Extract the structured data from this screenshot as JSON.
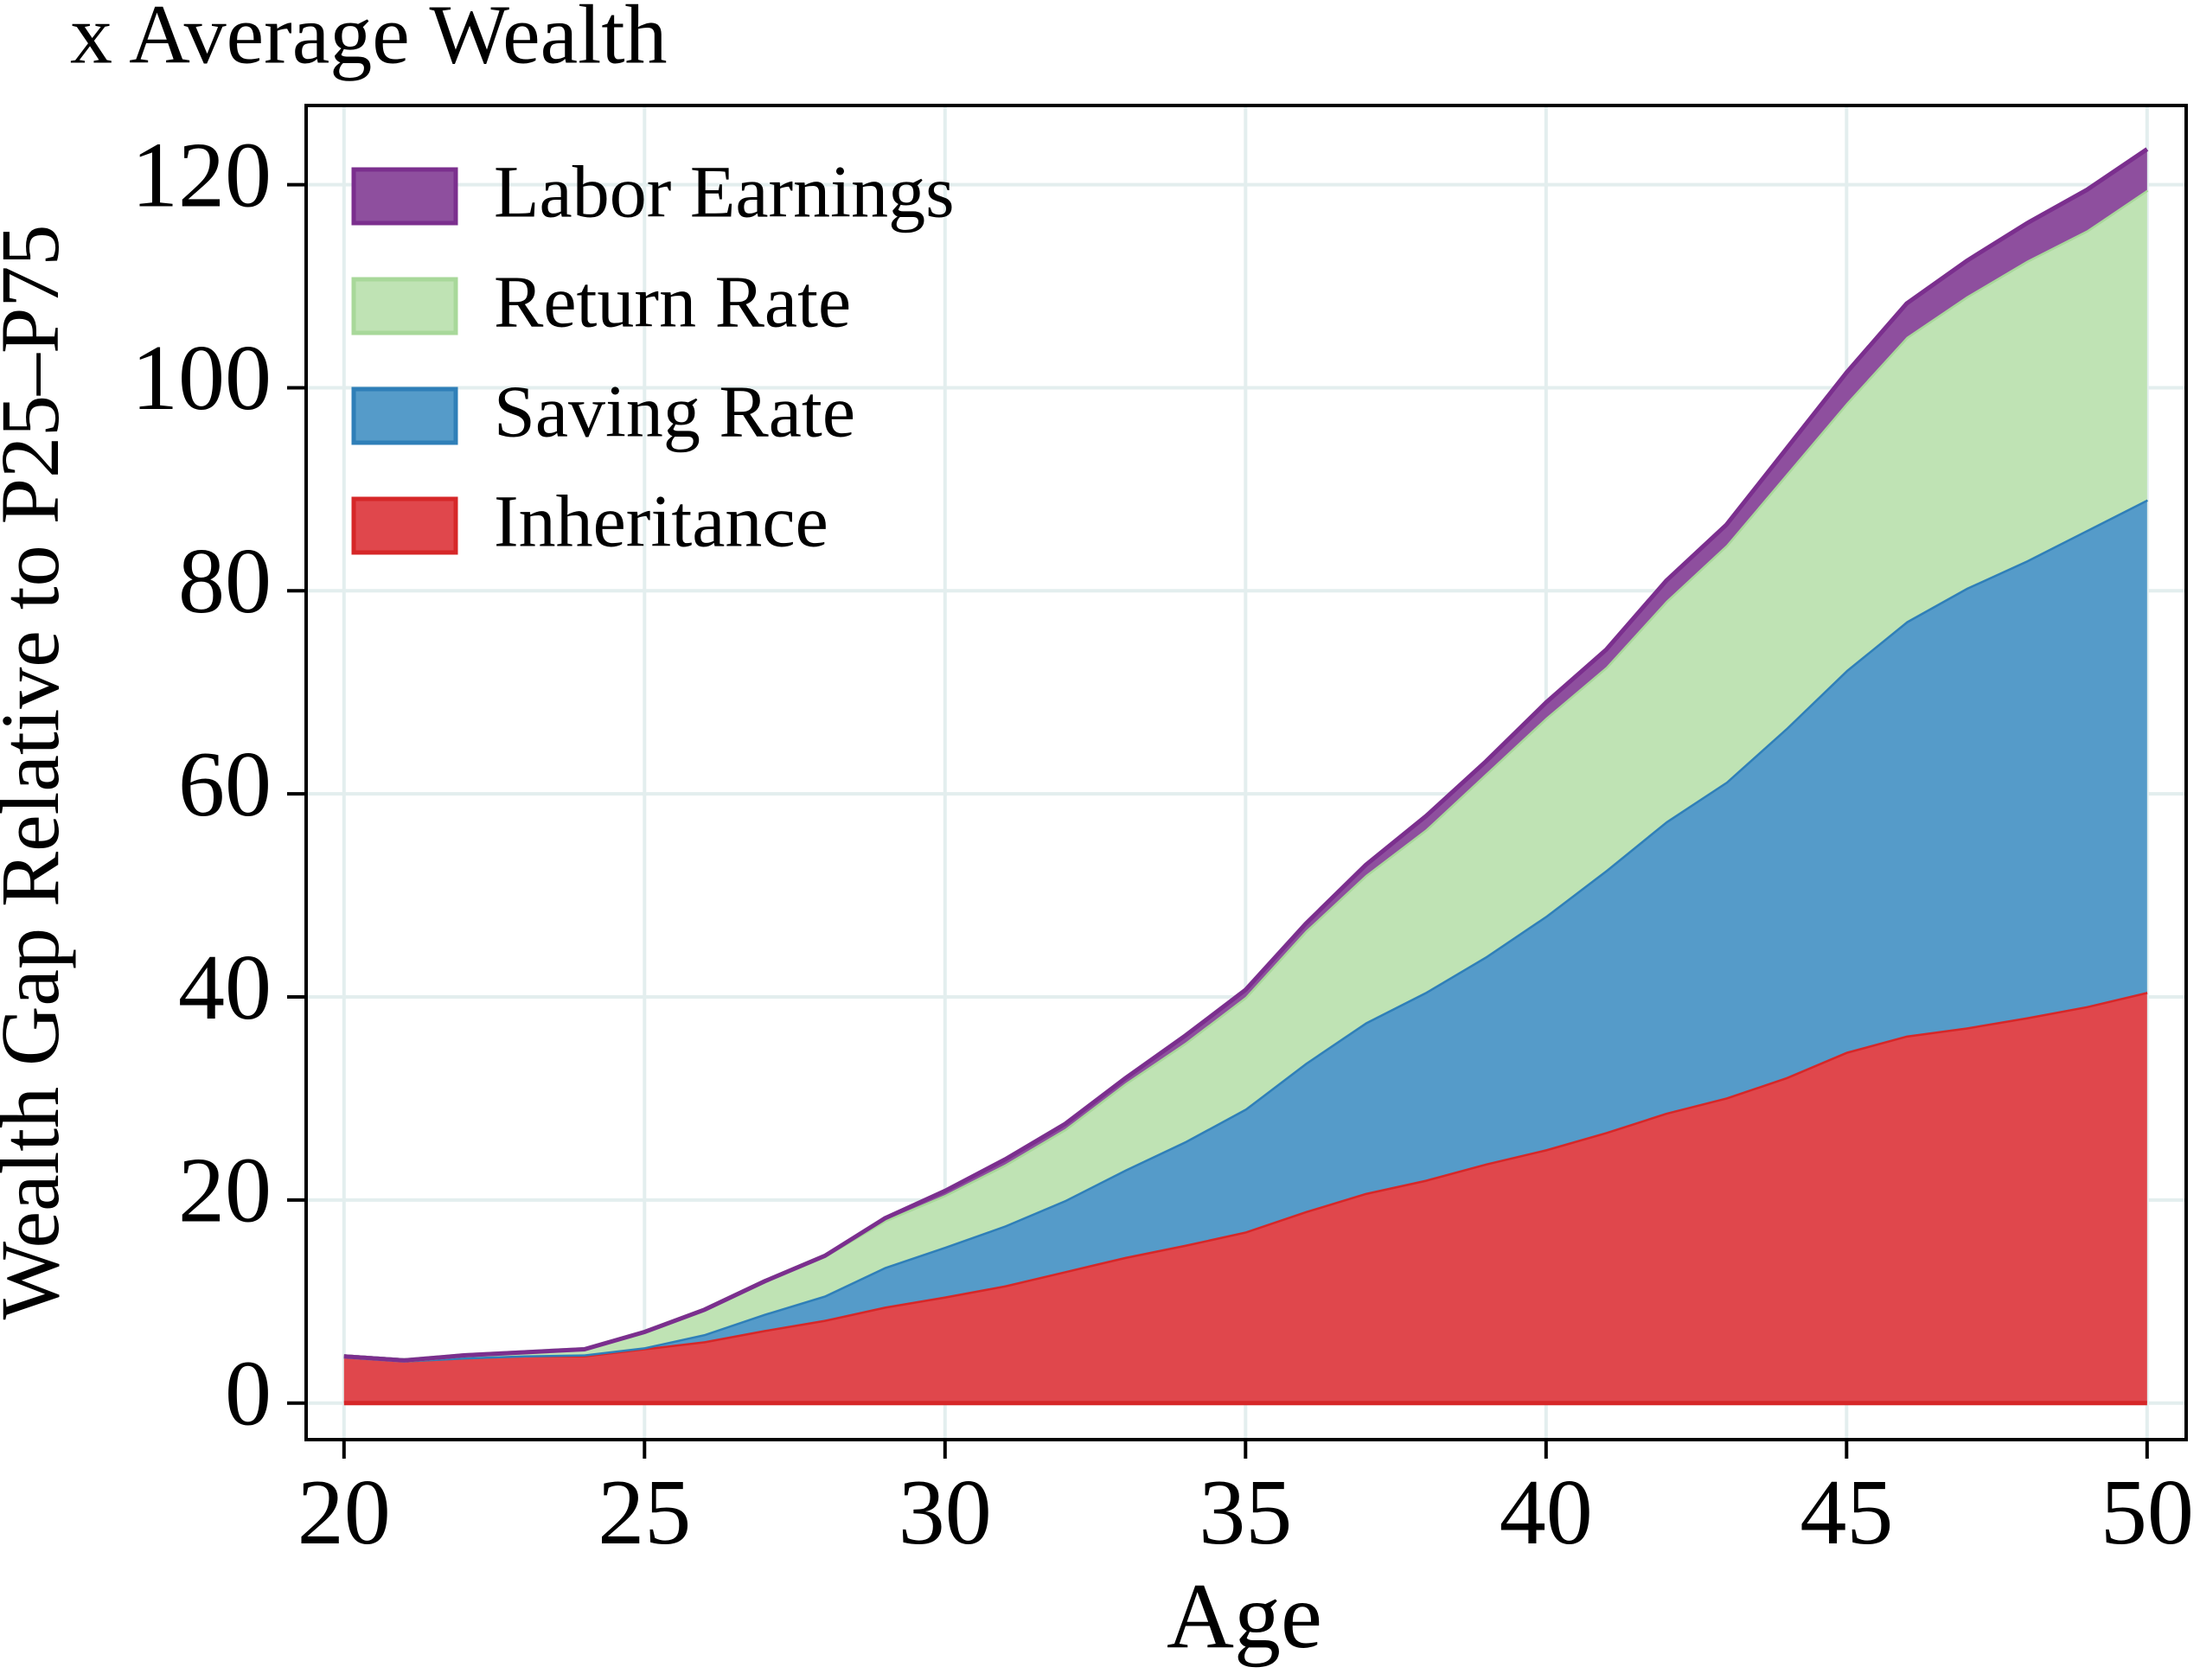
{
  "chart_data": {
    "type": "stacked_area",
    "title": "x Average Wealth",
    "x_label": "Age",
    "y_label": "Wealth Gap Relative to P25–P75",
    "x": [
      20,
      21,
      22,
      23,
      24,
      25,
      26,
      27,
      28,
      29,
      30,
      31,
      32,
      33,
      34,
      35,
      36,
      37,
      38,
      39,
      40,
      41,
      42,
      43,
      44,
      45,
      46,
      47,
      48,
      49,
      50
    ],
    "series": [
      {
        "name": "Inheritance",
        "color": "#e0474c",
        "line_color": "#d62728",
        "values": [
          4.6,
          4.2,
          4.5,
          4.7,
          4.7,
          5.4,
          6.1,
          7.2,
          8.2,
          9.5,
          10.5,
          11.6,
          13.0,
          14.4,
          15.6,
          16.9,
          18.9,
          20.7,
          22.0,
          23.6,
          25.0,
          26.7,
          28.6,
          30.1,
          32.1,
          34.6,
          36.2,
          37.0,
          38.0,
          39.1,
          40.5
        ]
      },
      {
        "name": "Saving Rate",
        "color": "#559bc9",
        "line_color": "#2f7fb8",
        "values": [
          0,
          0,
          0,
          0,
          0.1,
          0.1,
          0.7,
          1.6,
          2.4,
          3.9,
          4.9,
          5.9,
          7.0,
          8.6,
          10.2,
          12.1,
          14.6,
          16.8,
          18.5,
          20.4,
          23.0,
          25.8,
          28.7,
          31.1,
          34.4,
          37.6,
          40.8,
          43.3,
          45.0,
          46.9,
          48.5
        ]
      },
      {
        "name": "Return Rate",
        "color": "#bfe3b4",
        "line_color": "#a8d89a",
        "values": [
          0,
          0,
          0.2,
          0.3,
          0.5,
          1.5,
          2.4,
          3.2,
          3.9,
          4.6,
          5.1,
          6.0,
          7.0,
          8.5,
          9.7,
          11.0,
          13.0,
          14.5,
          16.0,
          18.0,
          19.5,
          20.0,
          21.7,
          23.3,
          25.0,
          26.3,
          28.0,
          28.7,
          29.5,
          29.5,
          30.5
        ]
      },
      {
        "name": "Labor Earnings",
        "color": "#8e4f9e",
        "line_color": "#7b2f8e",
        "values": [
          0,
          0,
          0,
          0,
          0,
          0,
          0,
          0,
          0,
          0.2,
          0.4,
          0.5,
          0.5,
          0.5,
          0.7,
          0.7,
          0.7,
          1.0,
          1.3,
          1.2,
          1.5,
          1.7,
          2.0,
          2.0,
          2.5,
          3.0,
          3.3,
          3.5,
          3.7,
          4.0,
          4.0
        ]
      }
    ],
    "xlim": [
      19.37,
      50.65
    ],
    "xticks": [
      20,
      25,
      30,
      35,
      40,
      45,
      50
    ],
    "ylim": [
      -3.6,
      127.8
    ],
    "yticks": [
      0,
      20,
      40,
      60,
      80,
      100,
      120
    ],
    "grid": true,
    "legend": "upper left"
  }
}
